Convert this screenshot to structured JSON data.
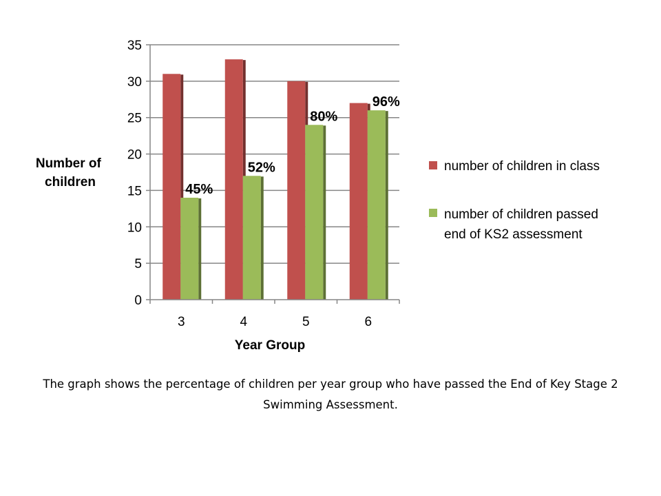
{
  "chart_data": {
    "type": "bar",
    "xlabel": "Year Group",
    "ylabel_lines": [
      "Number of",
      "children"
    ],
    "categories": [
      "3",
      "4",
      "5",
      "6"
    ],
    "ylim": [
      0,
      35
    ],
    "yticks": [
      0,
      5,
      10,
      15,
      20,
      25,
      30,
      35
    ],
    "grid": true,
    "legend_position": "right",
    "series": [
      {
        "name": "number of children in class",
        "name_lines": [
          "number of children in class"
        ],
        "color": "#c0504d",
        "values": [
          31,
          33,
          30,
          27
        ]
      },
      {
        "name": "number of children passed end of KS2 assessment",
        "name_lines": [
          "number of children passed",
          "end of KS2 assessment"
        ],
        "color": "#9bbb59",
        "values": [
          14,
          17,
          24,
          26
        ],
        "data_labels": [
          "45%",
          "52%",
          "80%",
          "96%"
        ]
      }
    ]
  },
  "caption": {
    "text": "The graph shows the percentage of children  per year group who have passed the End of Key Stage 2 Swimming Assessment."
  }
}
